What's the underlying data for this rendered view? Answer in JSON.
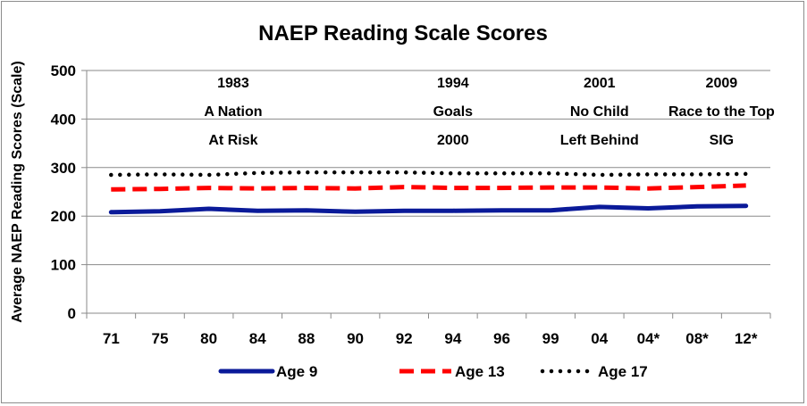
{
  "chart_data": {
    "type": "line",
    "title": "NAEP Reading Scale Scores",
    "xlabel": "",
    "ylabel": "Average NAEP Reading Scores (Scale)",
    "ylim": [
      0,
      500
    ],
    "yticks": [
      0,
      100,
      200,
      300,
      400,
      500
    ],
    "categories": [
      "71",
      "75",
      "80",
      "84",
      "88",
      "90",
      "92",
      "94",
      "96",
      "99",
      "04",
      "04*",
      "08*",
      "12*"
    ],
    "series": [
      {
        "name": "Age 9",
        "color": "#0a1a99",
        "style": "solid",
        "values": [
          208,
          210,
          215,
          211,
          212,
          209,
          211,
          211,
          212,
          212,
          219,
          216,
          220,
          221
        ]
      },
      {
        "name": "Age 13",
        "color": "#ff0000",
        "style": "dashed",
        "values": [
          255,
          256,
          258,
          257,
          258,
          257,
          260,
          258,
          258,
          259,
          259,
          257,
          260,
          263
        ]
      },
      {
        "name": "Age 17",
        "color": "#000000",
        "style": "dotted",
        "values": [
          285,
          286,
          285,
          289,
          290,
          290,
          290,
          288,
          288,
          288,
          285,
          286,
          286,
          287
        ]
      }
    ],
    "annotations": [
      {
        "category_index": 2.5,
        "lines": [
          "1983",
          "A Nation",
          "At Risk"
        ]
      },
      {
        "category_index": 7,
        "lines": [
          "1994",
          "Goals",
          "2000"
        ]
      },
      {
        "category_index": 10,
        "lines": [
          "2001",
          "No Child",
          "Left Behind"
        ]
      },
      {
        "category_index": 12.5,
        "lines": [
          "2009",
          "Race to the Top",
          "SIG"
        ]
      }
    ],
    "grid": true,
    "legend_position": "bottom"
  }
}
